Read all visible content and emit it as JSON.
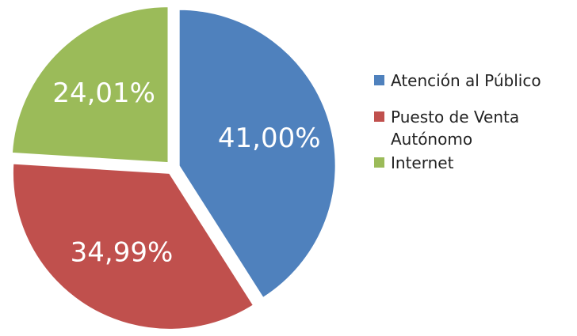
{
  "chart_data": {
    "type": "pie",
    "categories": [
      "Atención al Público",
      "Puesto de Venta Autónomo",
      "Internet"
    ],
    "values": [
      41.0,
      34.99,
      24.01
    ],
    "value_labels": [
      "41,00%",
      "34,99%",
      "24,01%"
    ],
    "colors": [
      "#4f81bd",
      "#c0504d",
      "#9bbb59"
    ],
    "legend": "right"
  }
}
